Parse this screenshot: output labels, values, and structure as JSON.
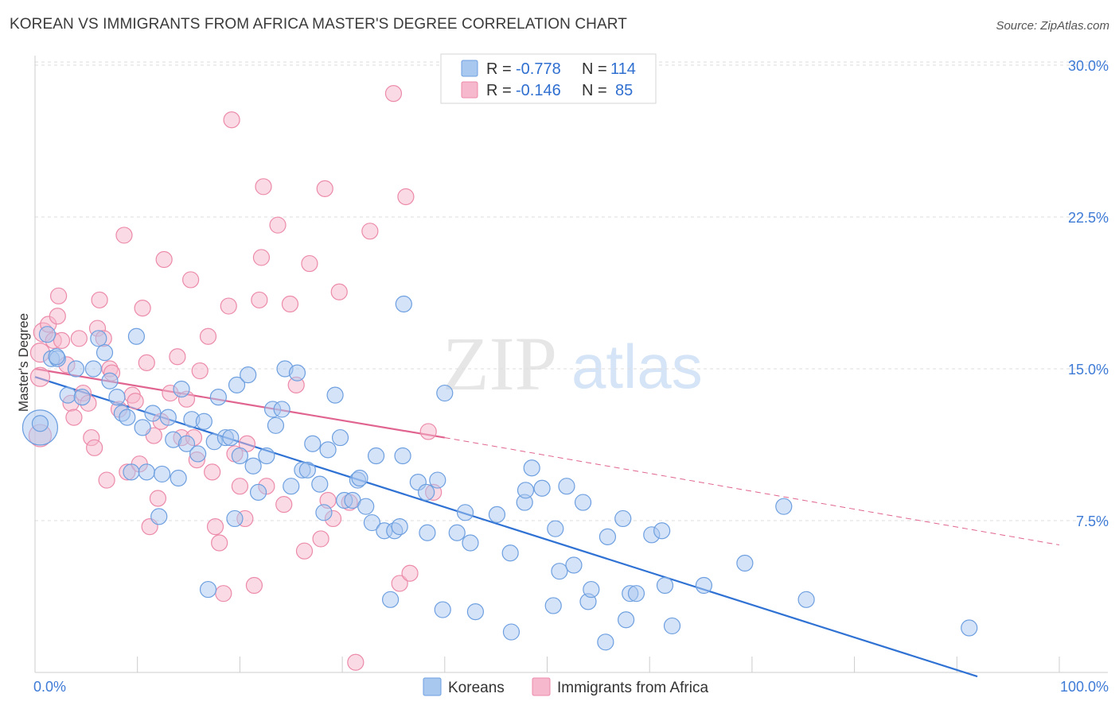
{
  "header": {
    "title": "KOREAN VS IMMIGRANTS FROM AFRICA MASTER'S DEGREE CORRELATION CHART",
    "source": "Source: ZipAtlas.com"
  },
  "watermark": {
    "zip": "ZIP",
    "atlas": "atlas"
  },
  "legend": {
    "r_label": "R =",
    "n_label": "N =",
    "rows": [
      {
        "name": "Koreans",
        "r": "-0.778",
        "n": "114",
        "color": "#a9c8f0"
      },
      {
        "name": "Immigrants from Africa",
        "r": "-0.146",
        "n": "85",
        "color": "#f6b8cc"
      }
    ]
  },
  "colors": {
    "koreans_fill": "#a9c8f0",
    "koreans_stroke": "#6d9fe0",
    "koreans_line": "#2f72d4",
    "africa_fill": "#f6b8cc",
    "africa_stroke": "#ec8aa9",
    "africa_line": "#e0648f",
    "tick_text": "#3e7bd6",
    "grid": "#dddddd"
  },
  "chart_data": {
    "type": "scatter",
    "title": "KOREAN VS IMMIGRANTS FROM AFRICA MASTER'S DEGREE CORRELATION CHART",
    "xlabel": "",
    "ylabel": "Master's Degree",
    "xlim": [
      0,
      100
    ],
    "ylim": [
      0,
      30.5
    ],
    "x_tick_labels": [
      "0.0%",
      "100.0%"
    ],
    "y_ticks": [
      7.5,
      15.0,
      22.5,
      30.0
    ],
    "y_tick_labels": [
      "7.5%",
      "15.0%",
      "22.5%",
      "30.0%"
    ],
    "grid": true,
    "legend_position": "top-center",
    "series": [
      {
        "name": "Koreans",
        "r": -0.778,
        "n": 114,
        "trend": {
          "x": [
            0,
            92
          ],
          "y": [
            14.6,
            -0.2
          ],
          "dashed_to": null
        },
        "points": [
          [
            0.5,
            12.1,
            22
          ],
          [
            0.5,
            12.3,
            10
          ],
          [
            1.2,
            16.7,
            10
          ],
          [
            1.6,
            15.5,
            10
          ],
          [
            2.2,
            15.5,
            10
          ],
          [
            2.1,
            15.6,
            10
          ],
          [
            3.2,
            13.7,
            10
          ],
          [
            4.0,
            15.0,
            10
          ],
          [
            4.6,
            13.6,
            10
          ],
          [
            5.7,
            15.0,
            10
          ],
          [
            6.2,
            16.5,
            10
          ],
          [
            6.8,
            15.8,
            10
          ],
          [
            7.3,
            14.4,
            10
          ],
          [
            8.0,
            13.6,
            10
          ],
          [
            8.5,
            12.8,
            10
          ],
          [
            9.0,
            12.6,
            10
          ],
          [
            9.4,
            9.9,
            10
          ],
          [
            9.9,
            16.6,
            10
          ],
          [
            10.5,
            12.1,
            10
          ],
          [
            10.9,
            9.9,
            10
          ],
          [
            11.5,
            12.8,
            10
          ],
          [
            12.1,
            7.7,
            10
          ],
          [
            12.4,
            9.8,
            10
          ],
          [
            13.0,
            12.6,
            10
          ],
          [
            13.5,
            11.5,
            10
          ],
          [
            14.0,
            9.6,
            10
          ],
          [
            14.3,
            14.0,
            10
          ],
          [
            14.8,
            11.3,
            10
          ],
          [
            15.3,
            12.5,
            10
          ],
          [
            15.9,
            10.8,
            10
          ],
          [
            16.5,
            12.4,
            10
          ],
          [
            16.9,
            4.1,
            10
          ],
          [
            17.5,
            11.4,
            10
          ],
          [
            17.9,
            13.6,
            10
          ],
          [
            18.6,
            11.6,
            10
          ],
          [
            19.1,
            11.6,
            10
          ],
          [
            19.5,
            7.6,
            10
          ],
          [
            19.7,
            14.2,
            10
          ],
          [
            20.0,
            10.7,
            10
          ],
          [
            20.8,
            14.7,
            10
          ],
          [
            21.3,
            10.2,
            10
          ],
          [
            21.8,
            8.9,
            10
          ],
          [
            22.6,
            10.7,
            10
          ],
          [
            23.2,
            13.0,
            10
          ],
          [
            23.5,
            12.2,
            10
          ],
          [
            24.1,
            13.0,
            10
          ],
          [
            24.4,
            15.0,
            10
          ],
          [
            25.0,
            9.2,
            10
          ],
          [
            25.6,
            14.8,
            10
          ],
          [
            26.1,
            10.0,
            10
          ],
          [
            26.6,
            10.0,
            10
          ],
          [
            27.1,
            11.3,
            10
          ],
          [
            27.8,
            9.3,
            10
          ],
          [
            28.2,
            7.9,
            10
          ],
          [
            28.6,
            11.0,
            10
          ],
          [
            29.3,
            13.7,
            10
          ],
          [
            29.8,
            11.6,
            10
          ],
          [
            30.2,
            8.5,
            10
          ],
          [
            31.0,
            8.5,
            10
          ],
          [
            31.5,
            9.5,
            10
          ],
          [
            31.7,
            9.6,
            10
          ],
          [
            32.3,
            8.2,
            10
          ],
          [
            32.9,
            7.4,
            10
          ],
          [
            33.3,
            10.7,
            10
          ],
          [
            34.1,
            7.0,
            10
          ],
          [
            34.7,
            3.6,
            10
          ],
          [
            35.1,
            7.0,
            10
          ],
          [
            35.6,
            7.2,
            10
          ],
          [
            35.9,
            10.7,
            10
          ],
          [
            36.0,
            18.2,
            10
          ],
          [
            37.4,
            9.4,
            10
          ],
          [
            38.2,
            8.9,
            10
          ],
          [
            38.3,
            6.9,
            10
          ],
          [
            39.3,
            9.5,
            10
          ],
          [
            39.8,
            3.1,
            10
          ],
          [
            40.0,
            13.8,
            10
          ],
          [
            41.2,
            6.9,
            10
          ],
          [
            42.0,
            7.9,
            10
          ],
          [
            42.5,
            6.4,
            10
          ],
          [
            43.0,
            3.0,
            10
          ],
          [
            45.1,
            7.8,
            10
          ],
          [
            46.4,
            5.9,
            10
          ],
          [
            46.5,
            2.0,
            10
          ],
          [
            47.8,
            8.4,
            10
          ],
          [
            47.9,
            9.0,
            10
          ],
          [
            48.5,
            10.1,
            10
          ],
          [
            49.5,
            9.1,
            10
          ],
          [
            50.6,
            3.3,
            10
          ],
          [
            50.8,
            7.1,
            10
          ],
          [
            51.2,
            5.0,
            10
          ],
          [
            51.9,
            9.2,
            10
          ],
          [
            52.6,
            5.3,
            10
          ],
          [
            53.5,
            8.4,
            10
          ],
          [
            54.0,
            3.5,
            10
          ],
          [
            54.3,
            4.1,
            10
          ],
          [
            55.7,
            1.5,
            10
          ],
          [
            55.9,
            6.7,
            10
          ],
          [
            57.4,
            7.6,
            10
          ],
          [
            57.7,
            2.6,
            10
          ],
          [
            58.1,
            3.9,
            10
          ],
          [
            58.7,
            3.9,
            10
          ],
          [
            60.2,
            6.8,
            10
          ],
          [
            61.2,
            7.0,
            10
          ],
          [
            61.5,
            4.3,
            10
          ],
          [
            62.2,
            2.3,
            10
          ],
          [
            65.3,
            4.3,
            10
          ],
          [
            69.3,
            5.4,
            10
          ],
          [
            73.1,
            8.2,
            10
          ],
          [
            75.3,
            3.6,
            10
          ],
          [
            91.2,
            2.2,
            10
          ]
        ]
      },
      {
        "name": "Immigrants from Africa",
        "r": -0.146,
        "n": 85,
        "trend": {
          "x": [
            0,
            40,
            100
          ],
          "y": [
            15.0,
            11.6,
            6.3
          ],
          "dashed_from": 40
        },
        "points": [
          [
            0.5,
            11.7,
            14
          ],
          [
            0.5,
            14.6,
            12
          ],
          [
            0.5,
            15.8,
            12
          ],
          [
            0.8,
            16.8,
            12
          ],
          [
            1.3,
            17.2,
            10
          ],
          [
            1.8,
            16.4,
            10
          ],
          [
            2.2,
            17.6,
            10
          ],
          [
            2.3,
            18.6,
            10
          ],
          [
            2.6,
            16.4,
            10
          ],
          [
            3.1,
            15.2,
            10
          ],
          [
            3.5,
            13.3,
            10
          ],
          [
            3.8,
            12.6,
            10
          ],
          [
            4.3,
            16.5,
            10
          ],
          [
            4.7,
            13.8,
            10
          ],
          [
            5.2,
            13.3,
            10
          ],
          [
            5.5,
            11.6,
            10
          ],
          [
            5.8,
            11.1,
            10
          ],
          [
            6.1,
            17.0,
            10
          ],
          [
            6.3,
            18.4,
            10
          ],
          [
            6.7,
            16.5,
            10
          ],
          [
            7.0,
            9.5,
            10
          ],
          [
            7.3,
            15.0,
            10
          ],
          [
            7.5,
            14.8,
            10
          ],
          [
            8.2,
            13.0,
            10
          ],
          [
            8.7,
            21.6,
            10
          ],
          [
            9.0,
            9.9,
            10
          ],
          [
            9.5,
            13.7,
            10
          ],
          [
            9.8,
            13.4,
            10
          ],
          [
            10.2,
            10.3,
            10
          ],
          [
            10.5,
            18.0,
            10
          ],
          [
            10.9,
            15.3,
            10
          ],
          [
            11.2,
            7.2,
            10
          ],
          [
            11.6,
            11.7,
            10
          ],
          [
            12.0,
            8.6,
            10
          ],
          [
            12.3,
            12.4,
            10
          ],
          [
            12.6,
            20.4,
            10
          ],
          [
            13.2,
            13.8,
            10
          ],
          [
            13.9,
            15.6,
            10
          ],
          [
            14.3,
            11.6,
            10
          ],
          [
            14.8,
            13.5,
            10
          ],
          [
            15.2,
            19.4,
            10
          ],
          [
            15.5,
            11.6,
            10
          ],
          [
            15.8,
            10.5,
            10
          ],
          [
            16.1,
            14.9,
            10
          ],
          [
            16.9,
            16.6,
            10
          ],
          [
            17.3,
            9.9,
            10
          ],
          [
            17.6,
            7.2,
            10
          ],
          [
            18.0,
            6.4,
            10
          ],
          [
            18.4,
            3.9,
            10
          ],
          [
            18.9,
            18.1,
            10
          ],
          [
            19.2,
            27.3,
            10
          ],
          [
            19.5,
            10.8,
            10
          ],
          [
            20.0,
            9.2,
            10
          ],
          [
            20.5,
            7.6,
            10
          ],
          [
            20.7,
            11.3,
            10
          ],
          [
            21.4,
            4.3,
            10
          ],
          [
            21.9,
            18.4,
            10
          ],
          [
            22.1,
            20.5,
            10
          ],
          [
            22.3,
            24.0,
            10
          ],
          [
            22.6,
            9.2,
            10
          ],
          [
            23.7,
            22.1,
            10
          ],
          [
            24.3,
            8.3,
            10
          ],
          [
            24.9,
            18.2,
            10
          ],
          [
            25.5,
            14.2,
            10
          ],
          [
            26.3,
            6.0,
            10
          ],
          [
            26.8,
            20.2,
            10
          ],
          [
            27.9,
            6.6,
            10
          ],
          [
            28.3,
            23.9,
            10
          ],
          [
            28.6,
            8.5,
            10
          ],
          [
            29.1,
            7.6,
            10
          ],
          [
            29.7,
            18.8,
            10
          ],
          [
            30.7,
            8.4,
            10
          ],
          [
            31.3,
            0.5,
            10
          ],
          [
            32.7,
            21.8,
            10
          ],
          [
            35.0,
            28.6,
            10
          ],
          [
            35.6,
            4.4,
            10
          ],
          [
            36.2,
            23.5,
            10
          ],
          [
            36.6,
            4.9,
            10
          ],
          [
            38.4,
            11.9,
            10
          ],
          [
            38.9,
            8.9,
            10
          ]
        ]
      }
    ]
  }
}
